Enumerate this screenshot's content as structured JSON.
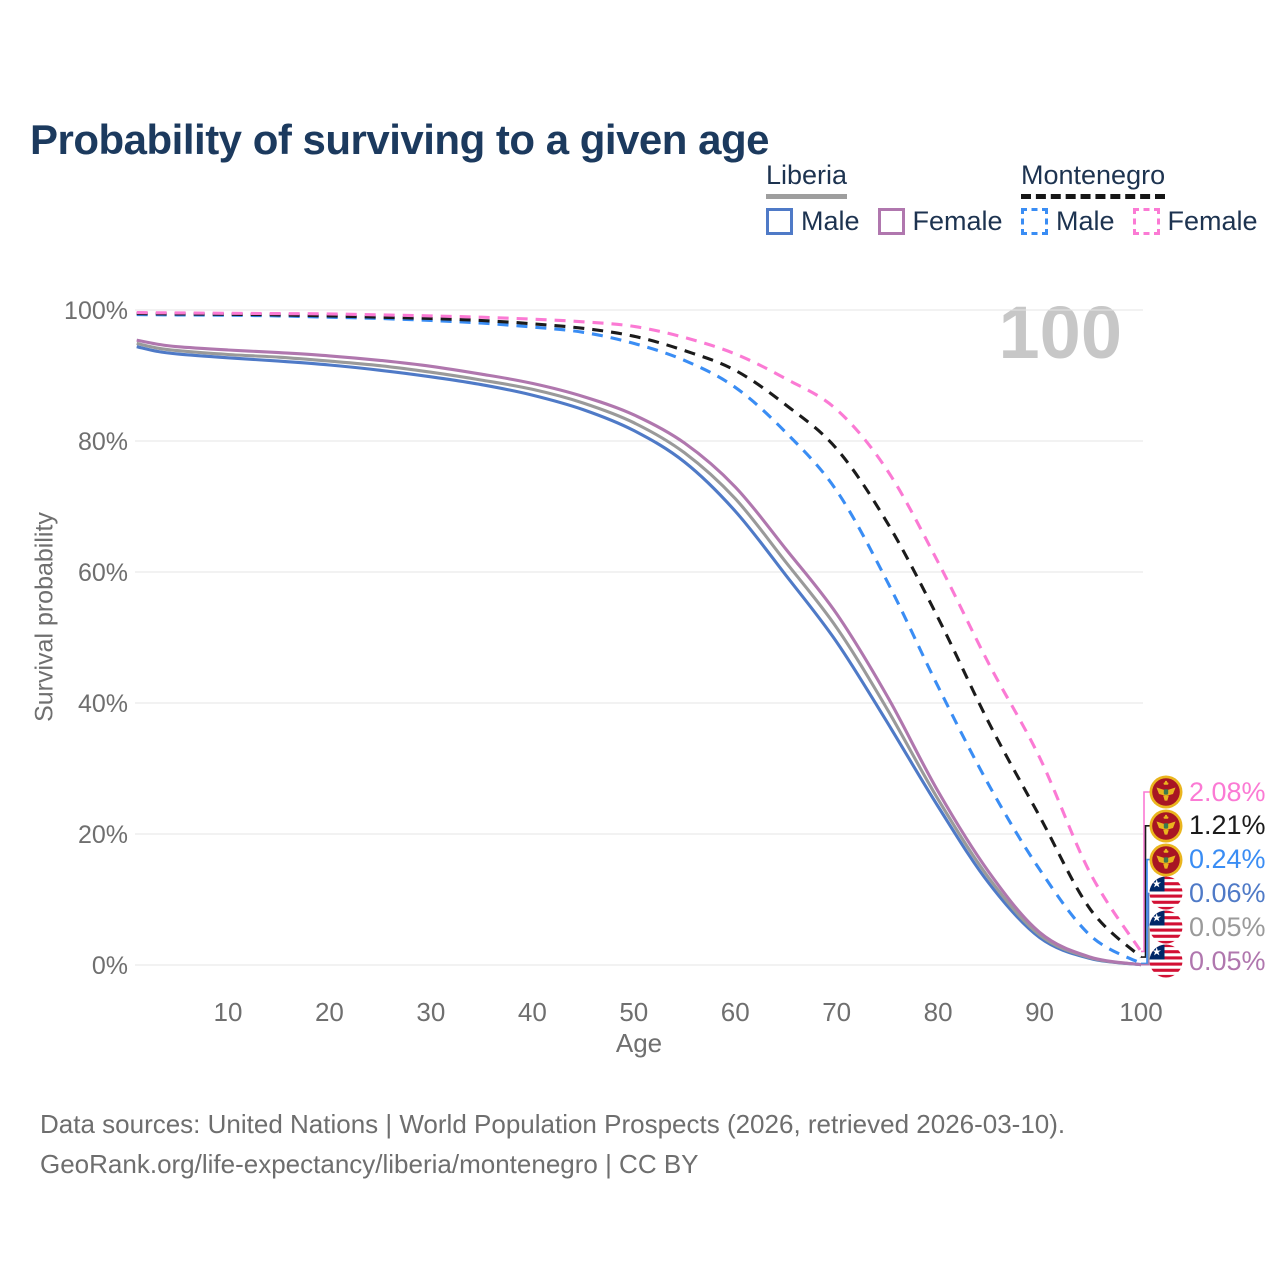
{
  "title": "Probability of surviving to a given age",
  "watermark": "100",
  "legend": {
    "groups": [
      {
        "name": "Liberia",
        "style": "solid",
        "underline_color": "#9e9e9e",
        "items": [
          {
            "label": "Male",
            "color": "#4f7ac7"
          },
          {
            "label": "Female",
            "color": "#b077ae"
          }
        ]
      },
      {
        "name": "Montenegro",
        "style": "dashed",
        "underline_color": "#161616",
        "items": [
          {
            "label": "Male",
            "color": "#3a8df4"
          },
          {
            "label": "Female",
            "color": "#fb7ad4"
          }
        ]
      }
    ]
  },
  "axes": {
    "y_label": "Survival probability",
    "x_label": "Age"
  },
  "chart_data": {
    "type": "line",
    "title": "Probability of surviving to a given age",
    "xlabel": "Age",
    "ylabel": "Survival probability",
    "xlim": [
      1,
      100
    ],
    "ylim": [
      0,
      100
    ],
    "grid": "horizontal",
    "legend_position": "top-right",
    "y_ticks": [
      {
        "label": "0%",
        "value": 0
      },
      {
        "label": "20%",
        "value": 20
      },
      {
        "label": "40%",
        "value": 40
      },
      {
        "label": "60%",
        "value": 60
      },
      {
        "label": "80%",
        "value": 80
      },
      {
        "label": "100%",
        "value": 100
      }
    ],
    "x_ticks": [
      {
        "label": "10",
        "value": 10
      },
      {
        "label": "20",
        "value": 20
      },
      {
        "label": "30",
        "value": 30
      },
      {
        "label": "40",
        "value": 40
      },
      {
        "label": "50",
        "value": 50
      },
      {
        "label": "60",
        "value": 60
      },
      {
        "label": "70",
        "value": 70
      },
      {
        "label": "80",
        "value": 80
      },
      {
        "label": "90",
        "value": 90
      },
      {
        "label": "100",
        "value": 100
      }
    ],
    "x": [
      1,
      3,
      5,
      10,
      15,
      20,
      25,
      30,
      35,
      40,
      45,
      50,
      55,
      60,
      65,
      70,
      75,
      80,
      85,
      90,
      95,
      100
    ],
    "series": [
      {
        "name": "montenegro-male",
        "country": "Montenegro",
        "sex": "Male",
        "color": "#3a8df4",
        "dash": true,
        "values": [
          99.3,
          99.28,
          99.25,
          99.2,
          99.1,
          98.9,
          98.7,
          98.4,
          98.0,
          97.4,
          96.6,
          94.9,
          92.3,
          88.2,
          81.3,
          72.4,
          58.5,
          42.5,
          27.5,
          14.6,
          4.5,
          0.24
        ]
      },
      {
        "name": "montenegro-total",
        "country": "Montenegro",
        "sex": "Both",
        "color": "#1b1b1b",
        "dash": true,
        "values": [
          99.45,
          99.42,
          99.4,
          99.35,
          99.25,
          99.1,
          98.9,
          98.7,
          98.4,
          97.9,
          97.2,
          96.0,
          93.8,
          90.8,
          85.5,
          78.8,
          67.5,
          53.0,
          37.0,
          22.7,
          8.5,
          1.21
        ]
      },
      {
        "name": "montenegro-female",
        "country": "Montenegro",
        "sex": "Female",
        "color": "#fb7ad4",
        "dash": true,
        "values": [
          99.6,
          99.58,
          99.55,
          99.5,
          99.45,
          99.4,
          99.25,
          99.1,
          98.9,
          98.6,
          98.2,
          97.5,
          95.8,
          93.3,
          89.5,
          84.8,
          75.5,
          61.5,
          46.0,
          31.7,
          14.0,
          2.08
        ]
      },
      {
        "name": "liberia-male",
        "country": "Liberia",
        "sex": "Male",
        "color": "#4f7ac7",
        "dash": false,
        "values": [
          94.4,
          93.7,
          93.3,
          92.7,
          92.2,
          91.6,
          90.8,
          89.8,
          88.6,
          87.0,
          84.8,
          81.6,
          76.8,
          69.3,
          59.5,
          49.3,
          37.0,
          24.2,
          12.5,
          4.2,
          1.0,
          0.06
        ]
      },
      {
        "name": "liberia-total",
        "country": "Liberia",
        "sex": "Both",
        "color": "#9a9a9a",
        "dash": false,
        "values": [
          94.9,
          94.2,
          93.8,
          93.2,
          92.8,
          92.2,
          91.5,
          90.5,
          89.3,
          87.9,
          85.8,
          82.8,
          78.2,
          71.2,
          61.5,
          51.5,
          39.0,
          25.3,
          13.3,
          4.6,
          1.1,
          0.05
        ]
      },
      {
        "name": "liberia-female",
        "country": "Liberia",
        "sex": "Female",
        "color": "#b077ae",
        "dash": false,
        "values": [
          95.4,
          94.8,
          94.4,
          93.9,
          93.5,
          93.0,
          92.3,
          91.4,
          90.2,
          88.8,
          86.8,
          84.0,
          79.7,
          73.0,
          63.5,
          53.6,
          41.0,
          26.5,
          14.2,
          5.0,
          1.2,
          0.05
        ]
      }
    ]
  },
  "end_labels": [
    {
      "value": "2.08%",
      "series": "montenegro-female",
      "flag": "montenegro",
      "color": "#fb7ad4"
    },
    {
      "value": "1.21%",
      "series": "montenegro-total",
      "flag": "montenegro",
      "color": "#1b1b1b"
    },
    {
      "value": "0.24%",
      "series": "montenegro-male",
      "flag": "montenegro",
      "color": "#3a8df4"
    },
    {
      "value": "0.06%",
      "series": "liberia-male",
      "flag": "liberia",
      "color": "#4f7ac7"
    },
    {
      "value": "0.05%",
      "series": "liberia-total",
      "flag": "liberia",
      "color": "#9a9a9a"
    },
    {
      "value": "0.05%",
      "series": "liberia-female",
      "flag": "liberia",
      "color": "#b077ae"
    }
  ],
  "footer": {
    "line1": "Data sources: United Nations | World Population Prospects (2026, retrieved 2026-03-10).",
    "line2": "GeoRank.org/life-expectancy/liberia/montenegro | CC BY"
  }
}
